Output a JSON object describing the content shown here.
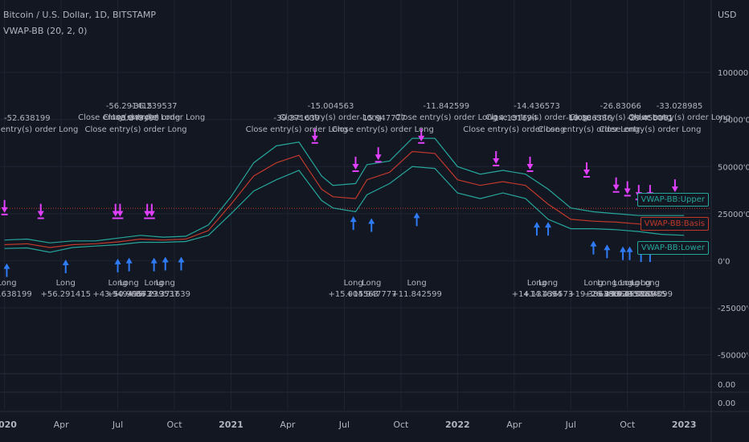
{
  "header": {
    "symbol_title": "Bitcoin / U.S. Dollar, 1D, BITSTAMP",
    "indicator_title": "VWAP-BB (20, 2, 0)"
  },
  "legend_tags": {
    "upper": "VWAP-BB:Upper",
    "basis": "VWAP-BB:Basis",
    "lower": "VWAP-BB:Lower"
  },
  "colors": {
    "background": "#131722",
    "grid": "#1f2433",
    "axis_text": "#b2b5be",
    "upper_band": "#26a69a",
    "basis": "#c0392b",
    "lower_band": "#26a69a",
    "price": "#e0e3eb",
    "long_arrow": "#2f7bf6",
    "close_arrow": "#e040fb",
    "ref_line": "#c0392b"
  },
  "chart_data": {
    "type": "line",
    "currency_label": "USD",
    "y_ticks": [
      "100000'0",
      "75000'0",
      "50000'0",
      "25000'0",
      "0'0",
      "-25000'0",
      "-50000'0"
    ],
    "y_tick_values": [
      100000,
      75000,
      50000,
      25000,
      0,
      -25000,
      -50000
    ],
    "ylim": [
      -60000,
      115000
    ],
    "x_ticks": [
      "2020",
      "Apr",
      "Jul",
      "Oct",
      "2021",
      "Apr",
      "Jul",
      "Oct",
      "2022",
      "Apr",
      "Jul",
      "Oct",
      "2023"
    ],
    "x_tick_values": [
      2020.0,
      2020.25,
      2020.5,
      2020.75,
      2021.0,
      2021.25,
      2021.5,
      2021.75,
      2022.0,
      2022.25,
      2022.5,
      2022.75,
      2023.0
    ],
    "xlim": [
      2019.98,
      2023.12
    ],
    "reference_level": 27800,
    "sub_pane_values": [
      "0.00",
      "0.00"
    ],
    "series": [
      {
        "name": "VWAP-BB:Upper",
        "x": [
          2020.0,
          2020.1,
          2020.2,
          2020.3,
          2020.4,
          2020.5,
          2020.6,
          2020.7,
          2020.8,
          2020.9,
          2021.0,
          2021.1,
          2021.2,
          2021.3,
          2021.4,
          2021.45,
          2021.55,
          2021.6,
          2021.7,
          2021.8,
          2021.9,
          2022.0,
          2022.1,
          2022.2,
          2022.3,
          2022.4,
          2022.5,
          2022.6,
          2022.7,
          2022.8,
          2022.9,
          2023.0
        ],
        "values": [
          11000,
          11500,
          9500,
          10500,
          10500,
          12000,
          13500,
          12500,
          13000,
          19000,
          34000,
          52000,
          61000,
          63000,
          45000,
          40000,
          41000,
          51000,
          53000,
          65000,
          65000,
          50000,
          46000,
          48000,
          46000,
          38000,
          28000,
          26000,
          25000,
          24000,
          24000,
          24000
        ]
      },
      {
        "name": "VWAP-BB:Basis",
        "x": [
          2020.0,
          2020.1,
          2020.2,
          2020.3,
          2020.4,
          2020.5,
          2020.6,
          2020.7,
          2020.8,
          2020.9,
          2021.0,
          2021.1,
          2021.2,
          2021.3,
          2021.4,
          2021.45,
          2021.55,
          2021.6,
          2021.7,
          2021.8,
          2021.9,
          2022.0,
          2022.1,
          2022.2,
          2022.3,
          2022.4,
          2022.5,
          2022.6,
          2022.7,
          2022.8,
          2022.9,
          2023.0
        ],
        "values": [
          8500,
          9000,
          7000,
          8500,
          9000,
          10000,
          11500,
          11000,
          11500,
          16000,
          30000,
          45000,
          52000,
          56000,
          38000,
          34000,
          33000,
          43000,
          47000,
          58000,
          57000,
          43000,
          40000,
          42000,
          40000,
          30000,
          22000,
          21000,
          20500,
          19500,
          18500,
          18000
        ]
      },
      {
        "name": "VWAP-BB:Lower",
        "x": [
          2020.0,
          2020.1,
          2020.2,
          2020.3,
          2020.4,
          2020.5,
          2020.6,
          2020.7,
          2020.8,
          2020.9,
          2021.0,
          2021.1,
          2021.2,
          2021.3,
          2021.4,
          2021.45,
          2021.55,
          2021.6,
          2021.7,
          2021.8,
          2021.9,
          2022.0,
          2022.1,
          2022.2,
          2022.3,
          2022.4,
          2022.5,
          2022.6,
          2022.7,
          2022.8,
          2022.9,
          2023.0
        ],
        "values": [
          6500,
          6800,
          4500,
          7000,
          7800,
          8500,
          9800,
          9800,
          10200,
          13500,
          25000,
          37000,
          43000,
          48000,
          32000,
          28000,
          26000,
          35000,
          41000,
          50000,
          49000,
          36000,
          33000,
          36000,
          33000,
          22000,
          17000,
          17000,
          16500,
          15500,
          14000,
          13500
        ]
      }
    ],
    "long_signals": {
      "x": [
        2020.01,
        2020.27,
        2020.5,
        2020.55,
        2020.66,
        2020.71,
        2020.78,
        2021.54,
        2021.62,
        2021.82,
        2022.35,
        2022.4,
        2022.6,
        2022.66,
        2022.73,
        2022.76,
        2022.81,
        2022.85
      ],
      "y": [
        8000,
        10000,
        10500,
        11000,
        11000,
        11500,
        11500,
        33000,
        32000,
        35000,
        30000,
        30000,
        20000,
        18000,
        17000,
        17000,
        16000,
        16000
      ],
      "labels": [
        {
          "text": "Long",
          "value": "+52.638199",
          "x": 2020.01
        },
        {
          "text": "Long",
          "value": "+56.291415",
          "x": 2020.27
        },
        {
          "text": "Long",
          "value": "+43.949495",
          "x": 2020.5
        },
        {
          "text": "Long",
          "value": "+50.90677",
          "x": 2020.55
        },
        {
          "text": "Long",
          "value": "+36.239537",
          "x": 2020.66
        },
        {
          "text": "Long",
          "value": "+39.371639",
          "x": 2020.71
        },
        {
          "text": "Long",
          "value": "+15.004563",
          "x": 2021.54
        },
        {
          "text": "Long",
          "value": "+15.947777",
          "x": 2021.62
        },
        {
          "text": "Long",
          "value": "+11.842599",
          "x": 2021.82
        },
        {
          "text": "Long",
          "value": "+14.131694",
          "x": 2022.35
        },
        {
          "text": "Long",
          "value": "+14.436573",
          "x": 2022.4
        },
        {
          "text": "Long",
          "value": "+19.386386",
          "x": 2022.6
        },
        {
          "text": "Long",
          "value": "+26.83066",
          "x": 2022.66
        },
        {
          "text": "Long",
          "value": "+29.929572",
          "x": 2022.73
        },
        {
          "text": "Long",
          "value": "+29.455161",
          "x": 2022.76
        },
        {
          "text": "Long",
          "value": "+33.028985",
          "x": 2022.81
        },
        {
          "text": "Long",
          "value": "+38.04099",
          "x": 2022.85
        }
      ]
    },
    "close_signals": {
      "x": [
        2020.0,
        2020.16,
        2020.49,
        2020.51,
        2020.63,
        2020.65,
        2021.37,
        2021.55,
        2021.65,
        2021.84,
        2022.17,
        2022.32,
        2022.57,
        2022.7,
        2022.75,
        2022.8,
        2022.85,
        2022.96
      ],
      "y": [
        22000,
        20000,
        20000,
        20000,
        20000,
        20000,
        60000,
        45000,
        50000,
        60000,
        48000,
        45000,
        42000,
        34000,
        32000,
        30000,
        30000,
        33000
      ],
      "labels": [
        {
          "value": "-52.638199",
          "text": "Close entry(s) order Long",
          "x": 2020.1
        },
        {
          "value": "-56.291415",
          "text": "Close entry(s) order Long",
          "x": 2020.55
        },
        {
          "value": "-43.949495",
          "text": "Close entry(s) order Long",
          "x": 2020.58
        },
        {
          "value": "-36.239537",
          "text": "Close entry(s) order Long",
          "x": 2020.66
        },
        {
          "value": "-39.371639",
          "text": "Close entry(s) order Long",
          "x": 2021.29
        },
        {
          "value": "-15.004563",
          "text": "Close entry(s) order Long",
          "x": 2021.44
        },
        {
          "value": "-15.947777",
          "text": "Close entry(s) order Long",
          "x": 2021.67
        },
        {
          "value": "-11.842599",
          "text": "Close entry(s) order Long",
          "x": 2021.95
        },
        {
          "value": "-14.131694",
          "text": "Close entry(s) order Long",
          "x": 2022.25
        },
        {
          "value": "-14.436573",
          "text": "Close entry(s) order Long",
          "x": 2022.35
        },
        {
          "value": "-19.386386",
          "text": "Close entry(s) order Long",
          "x": 2022.58
        },
        {
          "value": "-26.83066",
          "text": "Close entry(s) order Long",
          "x": 2022.72
        },
        {
          "value": "-29.455161",
          "text": "Close entry(s) order Long",
          "x": 2022.85
        },
        {
          "value": "-33.028985",
          "text": "Close entry(s) order Long",
          "x": 2022.98
        }
      ]
    }
  }
}
